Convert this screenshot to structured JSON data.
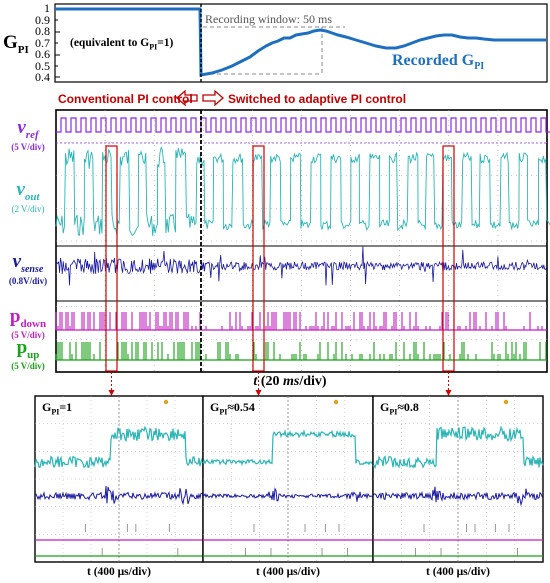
{
  "top_chart": {
    "ylabel_main": "G",
    "ylabel_sub": "PI",
    "y_ticks": [
      "1",
      "0.9",
      "0.8",
      "0.7",
      "0.6",
      "0.5",
      "0.4"
    ],
    "note_prefix": "(equivalent to G",
    "note_sub": "PI",
    "note_suffix": "=1)",
    "window_label": "Recording window: 50 ms",
    "recorded_main": "Recorded G",
    "recorded_sub": "PI",
    "colors": {
      "line": "#1f6fc0",
      "text_blue": "#1f6fc0"
    }
  },
  "arrows": {
    "left_label": "Conventional PI control",
    "right_label": "Switched to adaptive PI control",
    "color": "#c00000"
  },
  "scope": {
    "channels": [
      {
        "main": "v",
        "sub": "ref",
        "scale": "(5 V/div)",
        "color": "#8a2be2"
      },
      {
        "main": "v",
        "sub": "out",
        "scale": "(2 V/div)",
        "color": "#2bb5b5"
      },
      {
        "main": "v",
        "sub": "sense",
        "scale": "(0.8V/div)",
        "color": "#1a1aa0"
      },
      {
        "main": "p",
        "sub": "down",
        "scale": "(5 V/div)",
        "color": "#c020c0"
      },
      {
        "main": "p",
        "sub": "up",
        "scale": "(5 V/div)",
        "color": "#1aa01a"
      }
    ],
    "xaxis_prefix": "t",
    "xaxis_middle": " (20 ",
    "xaxis_unit": "ms",
    "xaxis_suffix": "/div)"
  },
  "zooms": [
    {
      "label_main": "G",
      "label_sub": "PI",
      "label_value": "=1",
      "xlabel": "t (400 μs/div)"
    },
    {
      "label_main": "G",
      "label_sub": "PI",
      "label_value": "≈0.54",
      "xlabel": "t (400 μs/div)"
    },
    {
      "label_main": "G",
      "label_sub": "PI",
      "label_value": "≈0.8",
      "xlabel": "t (400 μs/div)"
    }
  ]
}
